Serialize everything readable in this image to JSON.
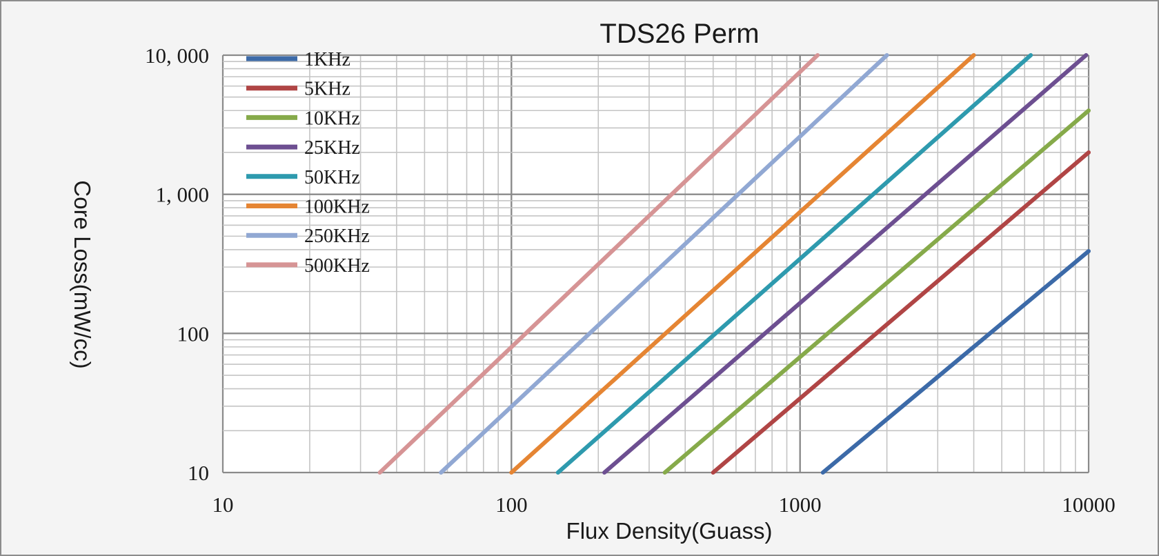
{
  "chart_data": {
    "type": "line",
    "title": "TDS26 Perm",
    "xlabel": "Flux Density(Guass)",
    "ylabel": "Core Loss(mW/cc)",
    "x_scale": "log",
    "y_scale": "log",
    "xlim": [
      10,
      10000
    ],
    "ylim": [
      10,
      10000
    ],
    "grid": true,
    "legend_position": "top-left",
    "x_ticks": [
      "10",
      "100",
      "1000",
      "10000"
    ],
    "y_ticks": [
      "10",
      "100",
      "1, 000",
      "10, 000"
    ],
    "series": [
      {
        "name": "1KHz",
        "color": "#3c6aa8",
        "x": [
          1200,
          10000
        ],
        "y": [
          10,
          390
        ]
      },
      {
        "name": "5KHz",
        "color": "#b04545",
        "x": [
          500,
          10000
        ],
        "y": [
          10,
          2000
        ]
      },
      {
        "name": "10KHz",
        "color": "#86aa4a",
        "x": [
          340,
          10000
        ],
        "y": [
          10,
          4000
        ]
      },
      {
        "name": "25KHz",
        "color": "#6d4f91",
        "x": [
          210,
          9800
        ],
        "y": [
          10,
          10000
        ]
      },
      {
        "name": "50KHz",
        "color": "#2e9aae",
        "x": [
          145,
          6300
        ],
        "y": [
          10,
          10000
        ]
      },
      {
        "name": "100KHz",
        "color": "#e58533",
        "x": [
          100,
          4000
        ],
        "y": [
          10,
          10000
        ]
      },
      {
        "name": "250KHz",
        "color": "#91a8d3",
        "x": [
          57,
          2000
        ],
        "y": [
          10,
          10000
        ]
      },
      {
        "name": "500KHz",
        "color": "#d69495",
        "x": [
          35,
          1150
        ],
        "y": [
          10,
          10000
        ]
      }
    ]
  }
}
